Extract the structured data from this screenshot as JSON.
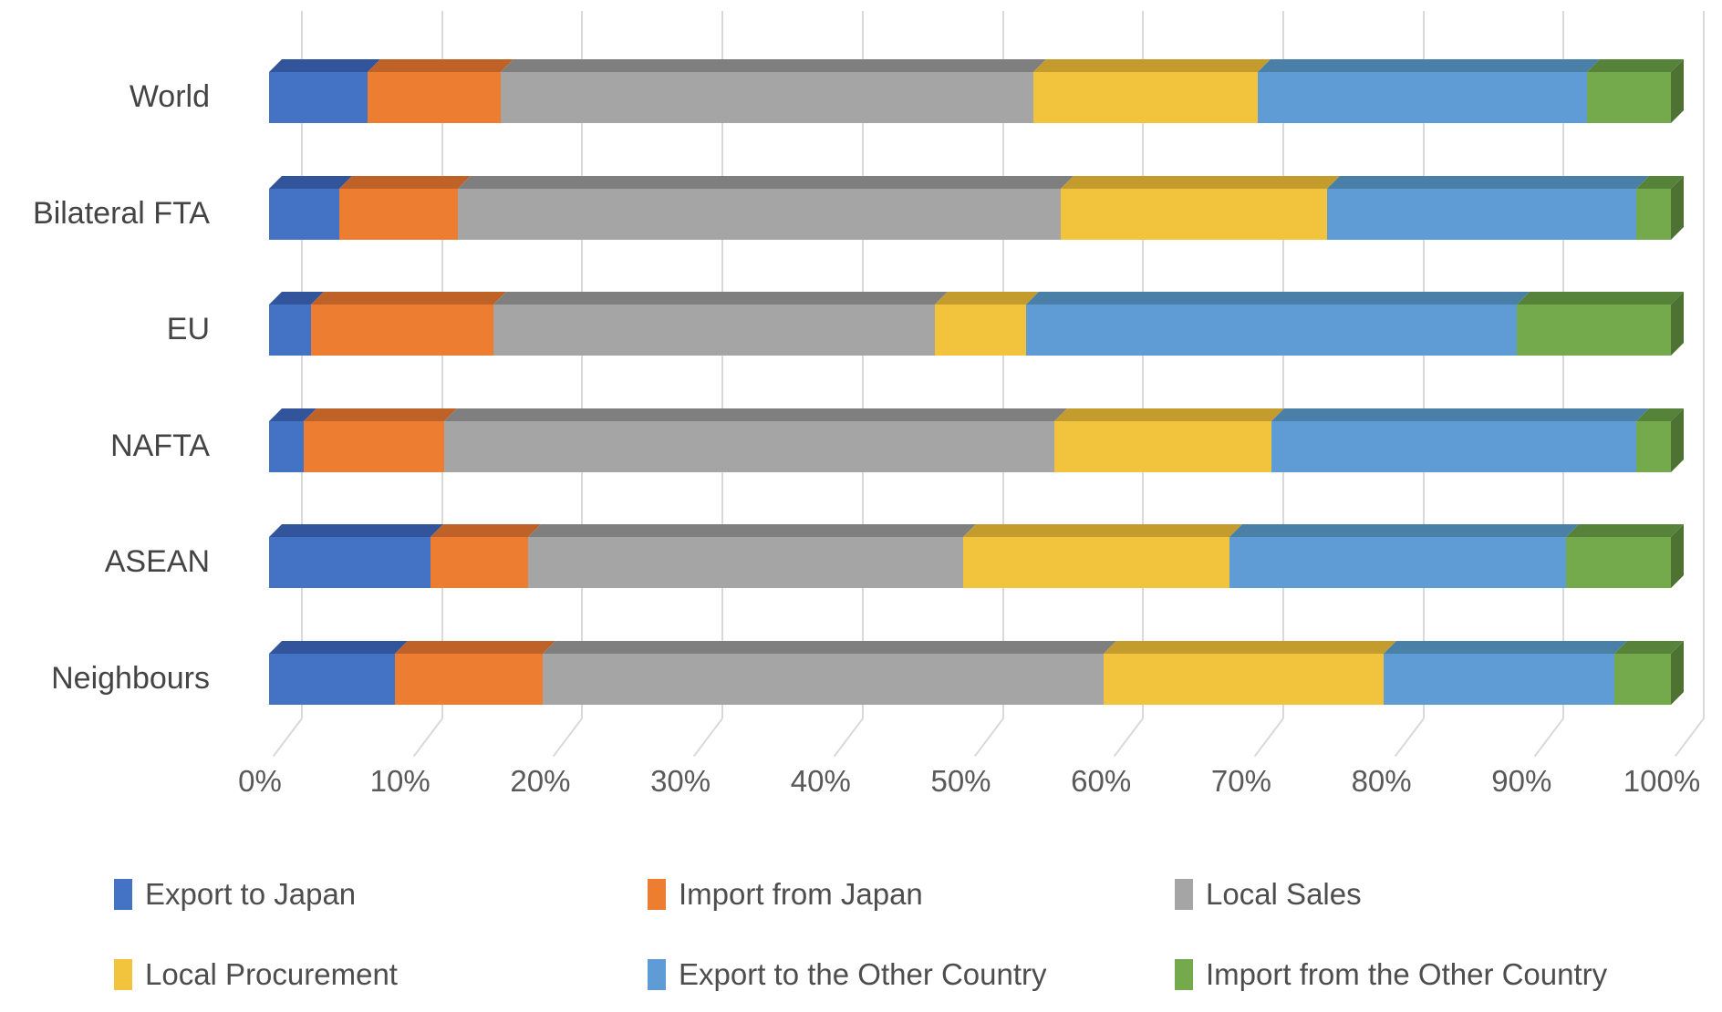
{
  "chart_data": {
    "type": "bar",
    "subtype": "100%-stacked-horizontal-3d",
    "title": "",
    "categories": [
      "World",
      "Bilateral FTA",
      "EU",
      "NAFTA",
      "ASEAN",
      "Neighbours"
    ],
    "series": [
      {
        "name": "Export to Japan",
        "color": "#4472C4",
        "values": [
          7,
          5,
          3,
          2.5,
          11.5,
          9
        ]
      },
      {
        "name": "Import from Japan",
        "color": "#ED7D31",
        "values": [
          9.5,
          8.5,
          13,
          10,
          7,
          10.5
        ]
      },
      {
        "name": "Local Sales",
        "color": "#A5A5A5",
        "values": [
          38,
          43,
          31.5,
          43.5,
          31,
          40
        ]
      },
      {
        "name": "Local Procurement",
        "color": "#F2C33C",
        "values": [
          16,
          19,
          6.5,
          15.5,
          19,
          20
        ]
      },
      {
        "name": "Export to the Other Country",
        "color": "#5F9CD6",
        "values": [
          23.5,
          22,
          35,
          26,
          24,
          16.5
        ]
      },
      {
        "name": "Import from the Other Country",
        "color": "#74A94C",
        "values": [
          6,
          2.5,
          11,
          2.5,
          7.5,
          4
        ]
      }
    ],
    "x_ticks": [
      "0%",
      "10%",
      "20%",
      "30%",
      "40%",
      "50%",
      "60%",
      "70%",
      "80%",
      "90%",
      "100%"
    ],
    "xlim": [
      0,
      100
    ],
    "xlabel": "",
    "ylabel": "",
    "grid": true,
    "legend_position": "bottom"
  }
}
